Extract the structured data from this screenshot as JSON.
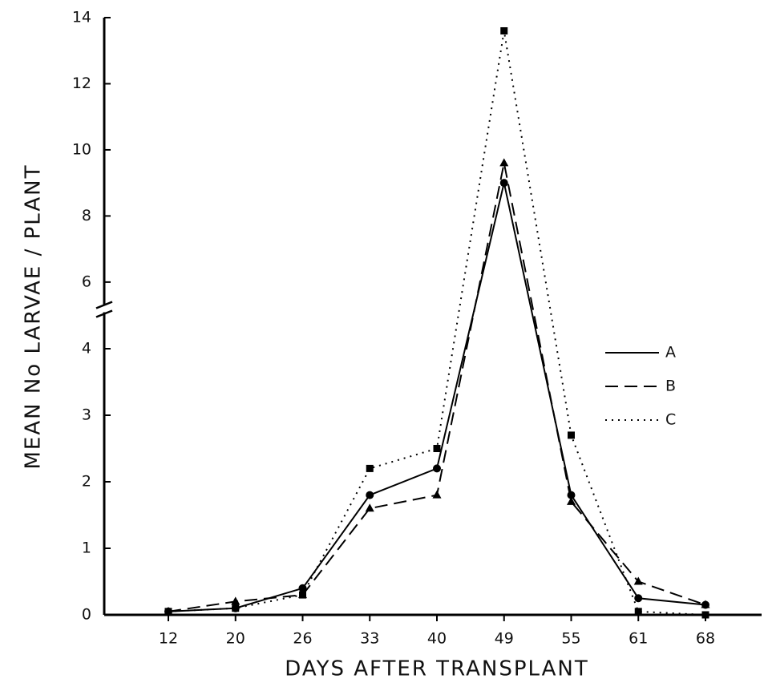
{
  "chart_data": {
    "type": "line",
    "x_label": "DAYS AFTER TRANSPLANT",
    "y_label": "MEAN No LARVAE / PLANT",
    "categories": [
      "12",
      "20",
      "26",
      "33",
      "40",
      "49",
      "55",
      "61",
      "68"
    ],
    "ylim": [
      0,
      14
    ],
    "y_break": [
      4.5,
      5.5
    ],
    "yticks": [
      0,
      1,
      2,
      3,
      4,
      6,
      8,
      10,
      12,
      14
    ],
    "legend": "right",
    "series": [
      {
        "name": "A",
        "color": "#000000",
        "line_style": "solid",
        "marker": "circle",
        "values": [
          0.05,
          0.1,
          0.4,
          1.8,
          2.2,
          9.0,
          1.8,
          0.25,
          0.15
        ]
      },
      {
        "name": "B",
        "color": "#000000",
        "line_style": "dashed",
        "marker": "triangle",
        "values": [
          0.05,
          0.2,
          0.3,
          1.6,
          1.8,
          9.6,
          1.7,
          0.5,
          0.15
        ]
      },
      {
        "name": "C",
        "color": "#000000",
        "line_style": "dotted",
        "marker": "square",
        "values": [
          0.05,
          0.1,
          0.3,
          2.2,
          2.5,
          13.6,
          2.7,
          0.05,
          0.0
        ]
      }
    ]
  }
}
